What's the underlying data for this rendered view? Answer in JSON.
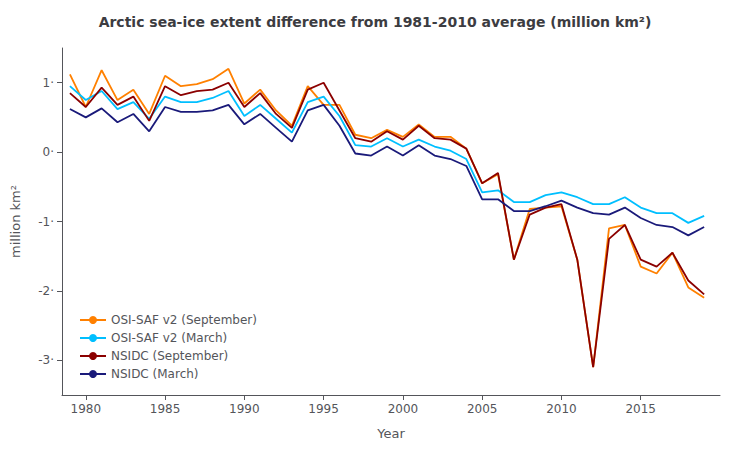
{
  "chart_data": {
    "type": "line",
    "title": "Arctic sea-ice extent difference from 1981-2010 average (million km²)",
    "xlabel": "Year",
    "ylabel": "million km²",
    "x": [
      1979,
      1980,
      1981,
      1982,
      1983,
      1984,
      1985,
      1986,
      1987,
      1988,
      1989,
      1990,
      1991,
      1992,
      1993,
      1994,
      1995,
      1996,
      1997,
      1998,
      1999,
      2000,
      2001,
      2002,
      2003,
      2004,
      2005,
      2006,
      2007,
      2008,
      2009,
      2010,
      2011,
      2012,
      2013,
      2014,
      2015,
      2016,
      2017,
      2018,
      2019
    ],
    "series": [
      {
        "name": "OSI-SAF v2 (September)",
        "color": "#FF8000",
        "values": [
          1.12,
          0.65,
          1.18,
          0.75,
          0.9,
          0.55,
          1.1,
          0.95,
          0.98,
          1.05,
          1.2,
          0.7,
          0.9,
          0.6,
          0.38,
          0.95,
          0.68,
          0.68,
          0.25,
          0.2,
          0.32,
          0.22,
          0.4,
          0.22,
          0.22,
          0.05,
          -0.45,
          -0.32,
          -1.55,
          -0.82,
          -0.8,
          -0.78,
          -1.55,
          -3.1,
          -1.1,
          -1.05,
          -1.65,
          -1.75,
          -1.45,
          -1.95,
          -2.1
        ]
      },
      {
        "name": "OSI-SAF v2 (March)",
        "color": "#00BFFF",
        "values": [
          0.95,
          0.75,
          0.88,
          0.62,
          0.72,
          0.48,
          0.8,
          0.72,
          0.72,
          0.78,
          0.88,
          0.52,
          0.68,
          0.48,
          0.28,
          0.72,
          0.8,
          0.52,
          0.1,
          0.08,
          0.2,
          0.08,
          0.18,
          0.08,
          0.02,
          -0.1,
          -0.58,
          -0.55,
          -0.72,
          -0.72,
          -0.62,
          -0.58,
          -0.65,
          -0.75,
          -0.75,
          -0.65,
          -0.8,
          -0.88,
          -0.88,
          -1.02,
          -0.92
        ]
      },
      {
        "name": "NSIDC (September)",
        "color": "#8B0000",
        "values": [
          0.85,
          0.65,
          0.93,
          0.68,
          0.8,
          0.45,
          0.95,
          0.82,
          0.88,
          0.9,
          1.0,
          0.65,
          0.85,
          0.55,
          0.35,
          0.9,
          1.0,
          0.6,
          0.2,
          0.15,
          0.3,
          0.18,
          0.38,
          0.2,
          0.18,
          0.05,
          -0.45,
          -0.3,
          -1.55,
          -0.9,
          -0.8,
          -0.75,
          -1.55,
          -3.1,
          -1.25,
          -1.05,
          -1.55,
          -1.65,
          -1.45,
          -1.85,
          -2.05
        ]
      },
      {
        "name": "NSIDC (March)",
        "color": "#1a1a7a",
        "values": [
          0.62,
          0.5,
          0.63,
          0.43,
          0.55,
          0.3,
          0.65,
          0.58,
          0.58,
          0.6,
          0.68,
          0.4,
          0.55,
          0.35,
          0.15,
          0.6,
          0.68,
          0.38,
          -0.02,
          -0.05,
          0.08,
          -0.05,
          0.1,
          -0.05,
          -0.1,
          -0.2,
          -0.68,
          -0.68,
          -0.85,
          -0.85,
          -0.78,
          -0.7,
          -0.8,
          -0.88,
          -0.9,
          -0.8,
          -0.95,
          -1.05,
          -1.08,
          -1.2,
          -1.08
        ]
      }
    ],
    "xlim": [
      1978.5,
      2020.0
    ],
    "ylim": [
      -3.5,
      1.5
    ],
    "xticks": [
      1980,
      1985,
      1990,
      1995,
      2000,
      2005,
      2010,
      2015
    ],
    "yticks": [
      {
        "value": -3,
        "label": "-3·"
      },
      {
        "value": -2,
        "label": "-2·"
      },
      {
        "value": -1,
        "label": "-1·"
      },
      {
        "value": 0,
        "label": "0·"
      },
      {
        "value": 1,
        "label": "1·"
      }
    ],
    "grid": false,
    "legend": "lower left"
  }
}
